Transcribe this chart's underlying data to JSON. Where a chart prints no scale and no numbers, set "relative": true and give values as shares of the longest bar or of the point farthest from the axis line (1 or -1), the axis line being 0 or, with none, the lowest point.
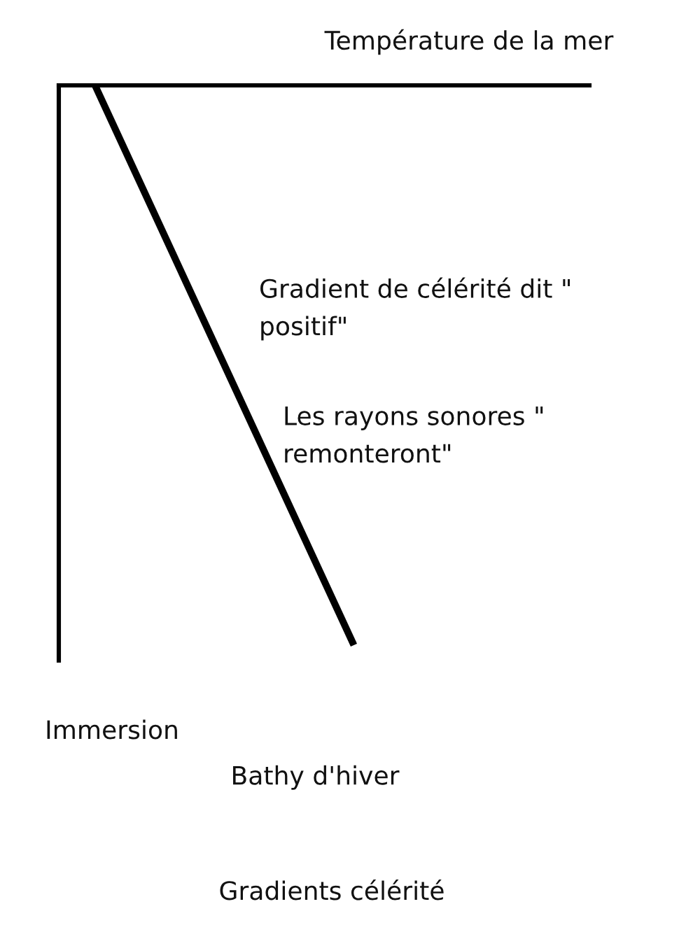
{
  "chart_data": {
    "type": "line",
    "relative": true,
    "xlabel": "Température de la mer",
    "title": "Bathy d'hiver",
    "subtitle": "Gradients célérité",
    "annotations": [
      "Gradient de célérité dit \"\npositif\"",
      "Les rayons sonores \"\nremonteront\"",
      "Immersion"
    ],
    "categories": [
      null,
      null
    ],
    "values": [
      0,
      -1
    ],
    "color": "#000000",
    "line_style": "solid"
  }
}
